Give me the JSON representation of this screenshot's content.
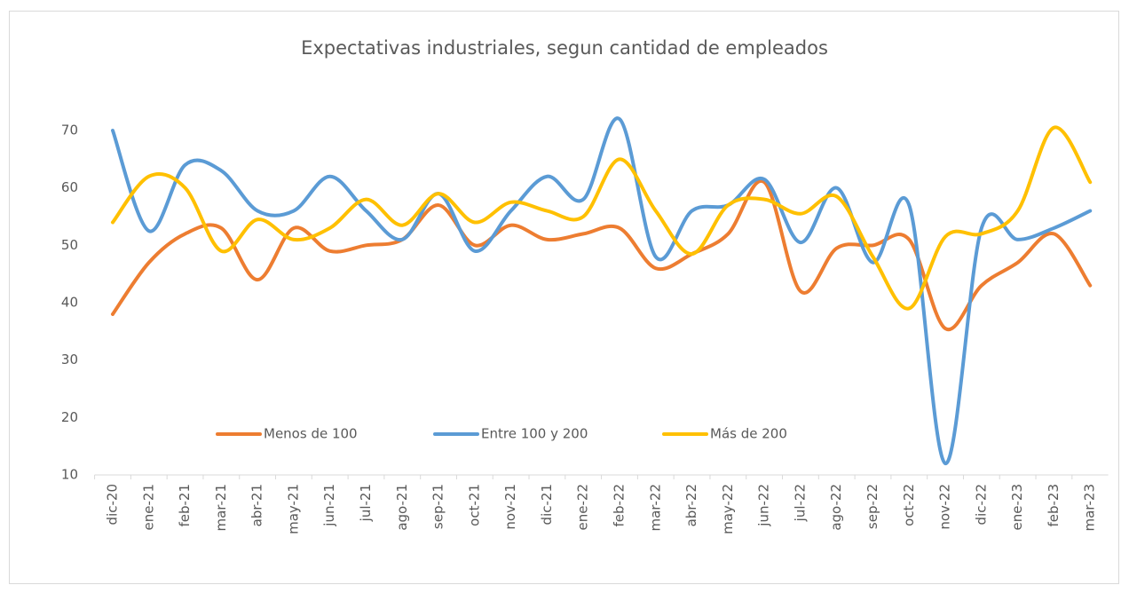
{
  "chart_data": {
    "type": "line",
    "title": "Expectativas industriales, segun cantidad de empleados",
    "categories": [
      "dic-20",
      "ene-21",
      "feb-21",
      "mar-21",
      "abr-21",
      "may-21",
      "jun-21",
      "jul-21",
      "ago-21",
      "sep-21",
      "oct-21",
      "nov-21",
      "dic-21",
      "ene-22",
      "feb-22",
      "mar-22",
      "abr-22",
      "may-22",
      "jun-22",
      "jul-22",
      "ago-22",
      "sep-22",
      "oct-22",
      "nov-22",
      "dic-22",
      "ene-23",
      "feb-23",
      "mar-23"
    ],
    "series": [
      {
        "name": "Menos de 100",
        "color": "#ed7d31",
        "values": [
          38,
          47,
          52,
          53,
          44,
          53,
          49,
          50,
          51,
          57,
          50,
          53.5,
          51,
          52,
          53,
          46,
          48.5,
          52,
          61,
          42,
          49.5,
          50,
          51,
          35.5,
          43,
          47,
          52,
          43
        ]
      },
      {
        "name": "Entre 100 y 200",
        "color": "#5b9bd5",
        "values": [
          70,
          52.5,
          64,
          63,
          56,
          56,
          62,
          56,
          51,
          59,
          49,
          56,
          62,
          58,
          72,
          48,
          56,
          57,
          61.5,
          50.5,
          60,
          47,
          57,
          12,
          53,
          51,
          53,
          56
        ]
      },
      {
        "name": "Más de 200",
        "color": "#ffc000",
        "values": [
          54,
          62,
          60,
          49,
          54.5,
          51,
          53,
          58,
          53.5,
          59,
          54,
          57.5,
          56,
          55,
          65,
          56,
          48.5,
          57,
          58,
          55.5,
          58.5,
          48,
          39,
          51.5,
          52,
          56,
          70.5,
          61
        ]
      }
    ],
    "ylim": [
      10,
      75
    ],
    "yticks": [
      10,
      20,
      30,
      40,
      50,
      60,
      70
    ],
    "grid": false,
    "smooth": true,
    "legend": "bottom"
  }
}
